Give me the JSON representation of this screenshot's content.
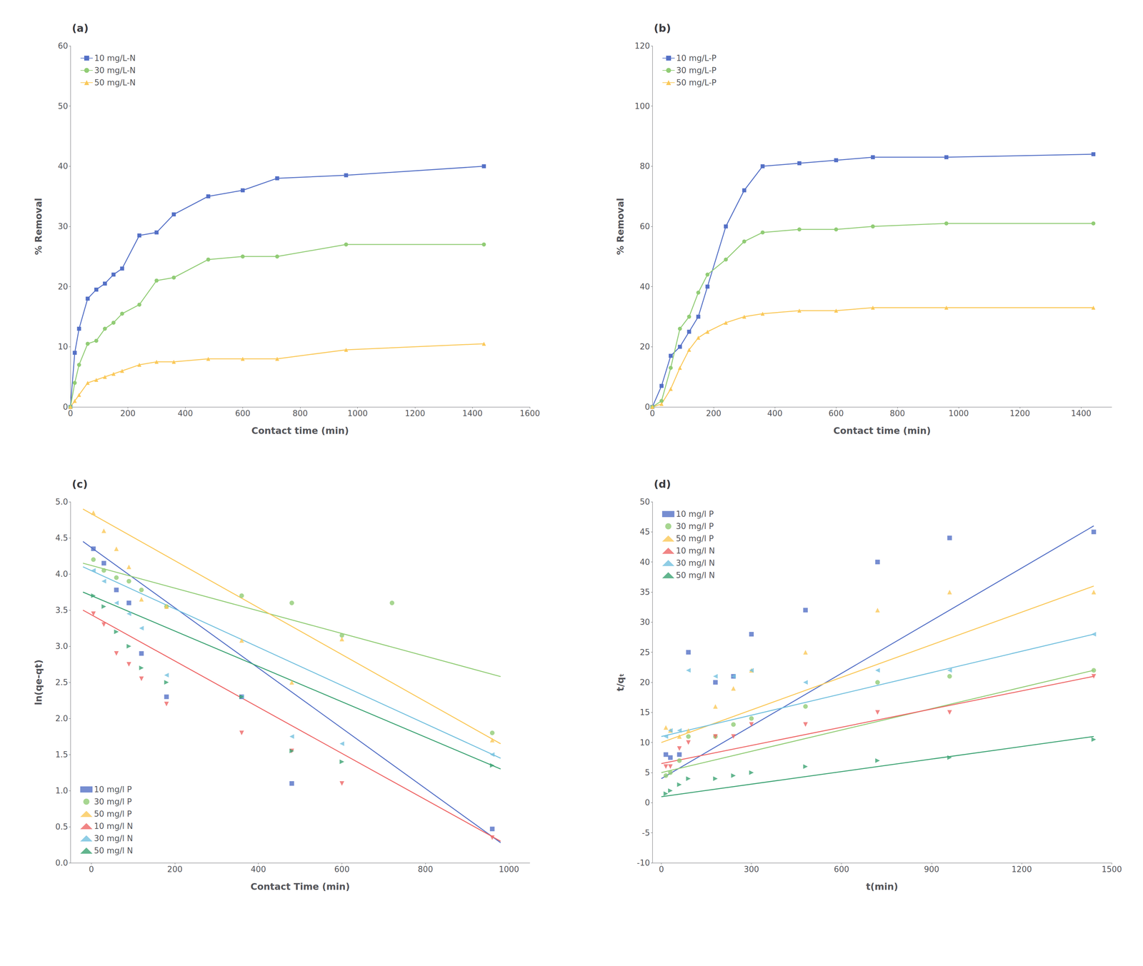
{
  "chart_data": [
    {
      "type": "line",
      "title": "(a)",
      "xlabel": "Contact time (min)",
      "ylabel": "% Removal",
      "xlim": [
        0,
        1600
      ],
      "ylim": [
        0,
        60
      ],
      "xticks": [
        0,
        200,
        400,
        600,
        800,
        1000,
        1200,
        1400,
        1600
      ],
      "yticks": [
        0,
        10,
        20,
        30,
        40,
        50,
        60
      ],
      "grid": false,
      "legend": "upper left",
      "series": [
        {
          "name": "10 mg/L-N",
          "marker": "square",
          "x": [
            0,
            15,
            30,
            60,
            90,
            120,
            150,
            180,
            240,
            300,
            360,
            480,
            600,
            720,
            960,
            1440
          ],
          "values": [
            0,
            9,
            13,
            18,
            19.5,
            20.5,
            22,
            23,
            28.5,
            29,
            32,
            35,
            36,
            38,
            38.5,
            40
          ]
        },
        {
          "name": "30 mg/L-N",
          "marker": "circle",
          "x": [
            0,
            15,
            30,
            60,
            90,
            120,
            150,
            180,
            240,
            300,
            360,
            480,
            600,
            720,
            960,
            1440
          ],
          "values": [
            0,
            4,
            7,
            10.5,
            11,
            13,
            14,
            15.5,
            17,
            21,
            21.5,
            24.5,
            25,
            25,
            27,
            27
          ]
        },
        {
          "name": "50 mg/L-N",
          "marker": "triangle-up",
          "x": [
            0,
            15,
            30,
            60,
            90,
            120,
            150,
            180,
            240,
            300,
            360,
            480,
            600,
            720,
            960,
            1440
          ],
          "values": [
            0,
            1,
            2,
            4,
            4.5,
            5,
            5.5,
            6,
            7,
            7.5,
            7.5,
            8,
            8,
            8,
            9.5,
            10.5
          ]
        }
      ]
    },
    {
      "type": "line",
      "title": "(b)",
      "xlabel": "Contact time (min)",
      "ylabel": "% Removal",
      "xlim": [
        0,
        1500
      ],
      "ylim": [
        0,
        120
      ],
      "xticks": [
        0,
        200,
        400,
        600,
        800,
        1000,
        1200,
        1400
      ],
      "yticks": [
        0,
        20,
        40,
        60,
        80,
        100,
        120
      ],
      "grid": false,
      "legend": "upper left",
      "series": [
        {
          "name": "10 mg/L-P",
          "marker": "square",
          "x": [
            0,
            30,
            60,
            90,
            120,
            150,
            180,
            240,
            300,
            360,
            480,
            600,
            720,
            960,
            1440
          ],
          "values": [
            0,
            7,
            17,
            20,
            25,
            30,
            40,
            60,
            72,
            80,
            81,
            82,
            83,
            83,
            84
          ]
        },
        {
          "name": "30 mg/L-P",
          "marker": "circle",
          "x": [
            0,
            30,
            60,
            90,
            120,
            150,
            180,
            240,
            300,
            360,
            480,
            600,
            720,
            960,
            1440
          ],
          "values": [
            0,
            2,
            13,
            26,
            30,
            38,
            44,
            49,
            55,
            58,
            59,
            59,
            60,
            61,
            61
          ]
        },
        {
          "name": "50 mg/L-P",
          "marker": "triangle-up",
          "x": [
            0,
            30,
            60,
            90,
            120,
            150,
            180,
            240,
            300,
            360,
            480,
            600,
            720,
            960,
            1440
          ],
          "values": [
            0,
            1,
            6,
            13,
            19,
            23,
            25,
            28,
            30,
            31,
            32,
            32,
            33,
            33,
            33
          ]
        }
      ]
    },
    {
      "type": "scatter",
      "title": "(c)",
      "xlabel": "Contact Time (min)",
      "ylabel": "ln(qe-qt)",
      "xlim": [
        -50,
        1050
      ],
      "ylim": [
        0,
        5.0
      ],
      "xticks": [
        0,
        200,
        400,
        600,
        800,
        1000
      ],
      "yticks": [
        {
          "value": 0,
          "label": "0.0"
        },
        0.5,
        {
          "value": 1,
          "label": "1.0"
        },
        1.5,
        {
          "value": 2,
          "label": "2.0"
        },
        2.5,
        {
          "value": 3,
          "label": "3.0"
        },
        3.5,
        {
          "value": 4,
          "label": "4.0"
        },
        4.5,
        {
          "value": 5,
          "label": "5.0"
        }
      ],
      "grid": false,
      "legend": "lower left",
      "series": [
        {
          "name": "10 mg/l P",
          "marker": "square",
          "x": [
            5,
            30,
            60,
            90,
            120,
            180,
            360,
            480,
            960
          ],
          "values": [
            4.35,
            4.15,
            3.78,
            3.6,
            2.9,
            2.3,
            2.3,
            1.1,
            0.47
          ],
          "fit_x": [
            -20,
            980
          ],
          "fit_values": [
            4.45,
            0.28
          ]
        },
        {
          "name": "30 mg/l P",
          "marker": "circle",
          "x": [
            5,
            30,
            60,
            90,
            120,
            180,
            360,
            480,
            600,
            720,
            960
          ],
          "values": [
            4.2,
            4.05,
            3.95,
            3.9,
            3.78,
            3.55,
            3.7,
            3.6,
            3.15,
            3.6,
            1.8
          ],
          "fit_x": [
            -20,
            980
          ],
          "fit_values": [
            4.15,
            2.58
          ]
        },
        {
          "name": "50 mg/l P",
          "marker": "triangle-up",
          "x": [
            5,
            30,
            60,
            90,
            120,
            180,
            360,
            480,
            600,
            960
          ],
          "values": [
            4.85,
            4.6,
            4.35,
            4.1,
            3.65,
            3.55,
            3.08,
            2.5,
            3.1,
            1.7
          ],
          "fit_x": [
            -20,
            980
          ],
          "fit_values": [
            4.9,
            1.65
          ]
        },
        {
          "name": "10 mg/l N",
          "marker": "triangle-down",
          "x": [
            5,
            30,
            60,
            90,
            120,
            180,
            360,
            480,
            600,
            960
          ],
          "values": [
            3.45,
            3.3,
            2.9,
            2.75,
            2.55,
            2.2,
            1.8,
            1.55,
            1.1,
            0.35
          ],
          "fit_x": [
            -20,
            980
          ],
          "fit_values": [
            3.5,
            0.3
          ]
        },
        {
          "name": "30 mg/l N",
          "marker": "triangle-left",
          "x": [
            5,
            30,
            60,
            90,
            120,
            180,
            360,
            480,
            600,
            960
          ],
          "values": [
            4.05,
            3.9,
            3.6,
            3.45,
            3.25,
            2.6,
            2.3,
            1.75,
            1.65,
            1.5
          ],
          "fit_x": [
            -20,
            980
          ],
          "fit_values": [
            4.1,
            1.45
          ]
        },
        {
          "name": "50 mg/l N",
          "marker": "triangle-right",
          "x": [
            5,
            30,
            60,
            90,
            120,
            180,
            360,
            480,
            600,
            960
          ],
          "values": [
            3.7,
            3.55,
            3.2,
            3.0,
            2.7,
            2.5,
            2.3,
            1.55,
            1.4,
            1.35
          ],
          "fit_x": [
            -20,
            980
          ],
          "fit_values": [
            3.75,
            1.3
          ]
        }
      ]
    },
    {
      "type": "scatter",
      "title": "(d)",
      "xlabel": "t(min)",
      "ylabel": "t/qₜ",
      "xlim": [
        -30,
        1500
      ],
      "ylim": [
        -10,
        50
      ],
      "xticks": [
        0,
        300,
        600,
        900,
        1200,
        1500
      ],
      "yticks": [
        -10,
        -5,
        0,
        5,
        10,
        15,
        20,
        25,
        30,
        35,
        40,
        45,
        50
      ],
      "grid": false,
      "legend": "upper left",
      "series": [
        {
          "name": "10 mg/l P",
          "marker": "square",
          "x": [
            15,
            30,
            60,
            90,
            180,
            240,
            300,
            480,
            720,
            960,
            1440
          ],
          "values": [
            8,
            7.5,
            8,
            25,
            20,
            21,
            28,
            32,
            40,
            44,
            45
          ],
          "fit_x": [
            0,
            1440
          ],
          "fit_values": [
            4,
            46
          ]
        },
        {
          "name": "30 mg/l P",
          "marker": "circle",
          "x": [
            15,
            30,
            60,
            90,
            180,
            240,
            300,
            480,
            720,
            960,
            1440
          ],
          "values": [
            4.5,
            5,
            7,
            11,
            11,
            13,
            14,
            16,
            20,
            21,
            22
          ],
          "fit_x": [
            0,
            1440
          ],
          "fit_values": [
            5,
            22
          ]
        },
        {
          "name": "50 mg/l P",
          "marker": "triangle-up",
          "x": [
            15,
            30,
            60,
            90,
            180,
            240,
            300,
            480,
            720,
            960,
            1440
          ],
          "values": [
            12.5,
            12,
            11,
            12,
            16,
            19,
            22,
            25,
            32,
            35,
            35
          ],
          "fit_x": [
            0,
            1440
          ],
          "fit_values": [
            10,
            36
          ]
        },
        {
          "name": "10 mg/l N",
          "marker": "triangle-down",
          "x": [
            15,
            30,
            60,
            90,
            180,
            240,
            300,
            480,
            720,
            960,
            1440
          ],
          "values": [
            6,
            6,
            9,
            10,
            11,
            11,
            13,
            13,
            15,
            15,
            21
          ],
          "fit_x": [
            0,
            1440
          ],
          "fit_values": [
            6.5,
            21
          ]
        },
        {
          "name": "30 mg/l N",
          "marker": "triangle-left",
          "x": [
            15,
            30,
            60,
            90,
            180,
            240,
            300,
            480,
            720,
            960,
            1440
          ],
          "values": [
            11,
            12,
            12,
            22,
            21,
            21,
            22,
            20,
            22,
            22,
            28
          ],
          "fit_x": [
            0,
            1440
          ],
          "fit_values": [
            11,
            28
          ]
        },
        {
          "name": "50 mg/l N",
          "marker": "triangle-right",
          "x": [
            15,
            30,
            60,
            90,
            180,
            240,
            300,
            480,
            720,
            960,
            1440
          ],
          "values": [
            1.5,
            2,
            3,
            4,
            4,
            4.5,
            5,
            6,
            7,
            7.5,
            10.5
          ],
          "fit_x": [
            0,
            1440
          ],
          "fit_values": [
            1,
            11
          ]
        }
      ]
    }
  ]
}
